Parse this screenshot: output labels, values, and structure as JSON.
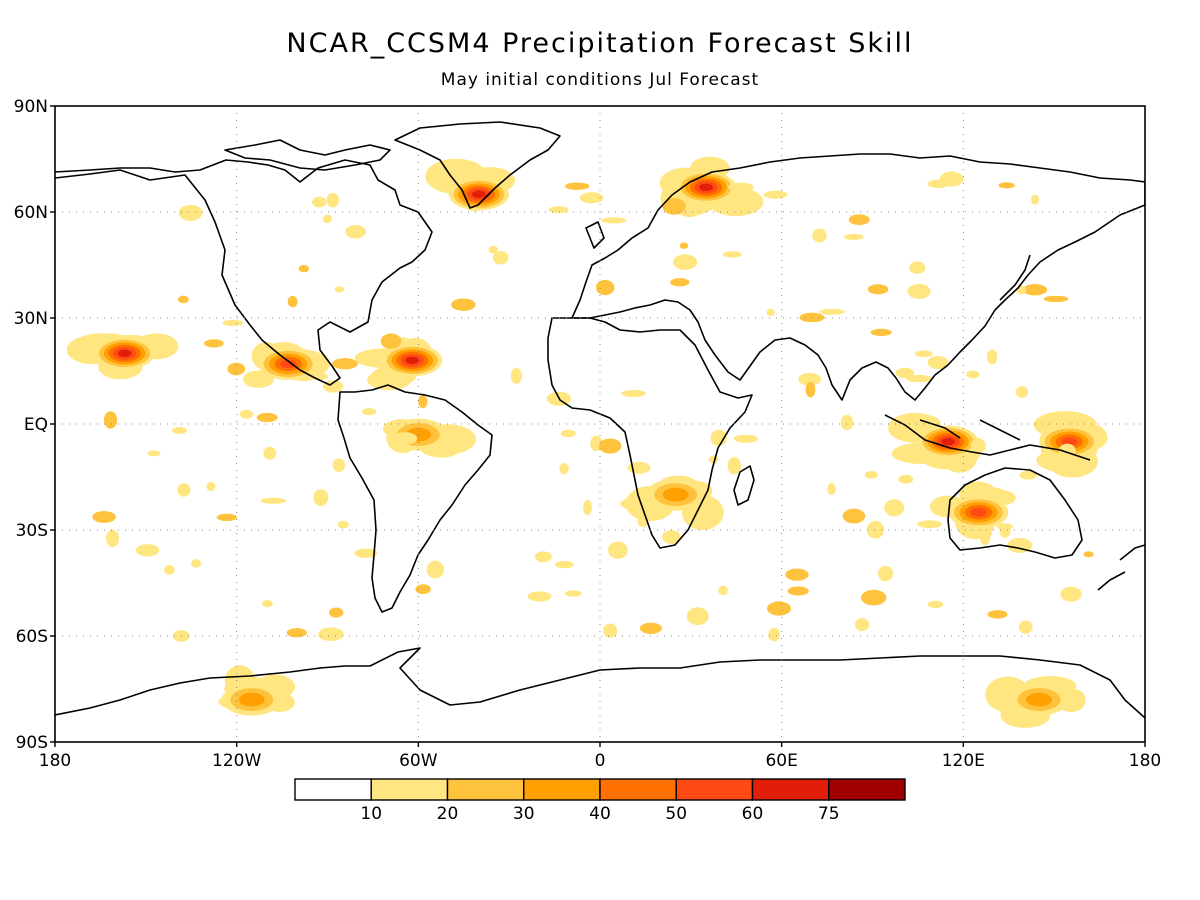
{
  "title": "NCAR_CCSM4 Precipitation Forecast Skill",
  "subtitle": "May initial conditions   Jul Forecast",
  "lat_labels": [
    "90N",
    "60N",
    "30N",
    "EQ",
    "30S",
    "60S",
    "90S"
  ],
  "lon_labels": [
    "180",
    "120W",
    "60W",
    "0",
    "60E",
    "120E",
    "180"
  ],
  "colorbar": {
    "colors": [
      "#ffffff",
      "#ffe680",
      "#ffc23c",
      "#ffa000",
      "#ff7000",
      "#ff4a14",
      "#e01e0a",
      "#a00000"
    ],
    "labels": [
      "10",
      "20",
      "30",
      "40",
      "50",
      "60",
      "75"
    ]
  },
  "chart_data": {
    "type": "heatmap",
    "variable": "Precipitation Forecast Skill",
    "lat_range": [
      -90,
      90
    ],
    "lon_range": [
      -180,
      180
    ],
    "levels": [
      10,
      20,
      30,
      40,
      50,
      60,
      75
    ],
    "grid": true,
    "skill_regions": [
      {
        "name": "Greenland south-east",
        "lon": -40,
        "lat": 65,
        "level": 60
      },
      {
        "name": "Caribbean",
        "lon": -62,
        "lat": 18,
        "level": 60
      },
      {
        "name": "Hawaii",
        "lon": -157,
        "lat": 20,
        "level": 60
      },
      {
        "name": "Barents coast",
        "lon": 35,
        "lat": 67,
        "level": 60
      },
      {
        "name": "Indonesia",
        "lon": 115,
        "lat": -5,
        "level": 60
      },
      {
        "name": "North-west Australia",
        "lon": 125,
        "lat": -25,
        "level": 50
      },
      {
        "name": "Gulf of Mexico coast",
        "lon": -103,
        "lat": 17,
        "level": 50
      },
      {
        "name": "Western Pacific",
        "lon": 155,
        "lat": -5,
        "level": 50
      },
      {
        "name": "East Antarctica",
        "lon": 145,
        "lat": -78,
        "level": 30
      },
      {
        "name": "West Antarctica",
        "lon": -115,
        "lat": -78,
        "level": 30
      },
      {
        "name": "Southern Africa",
        "lon": 25,
        "lat": -20,
        "level": 30
      },
      {
        "name": "Amazon",
        "lon": -60,
        "lat": -3,
        "level": 30
      }
    ]
  }
}
